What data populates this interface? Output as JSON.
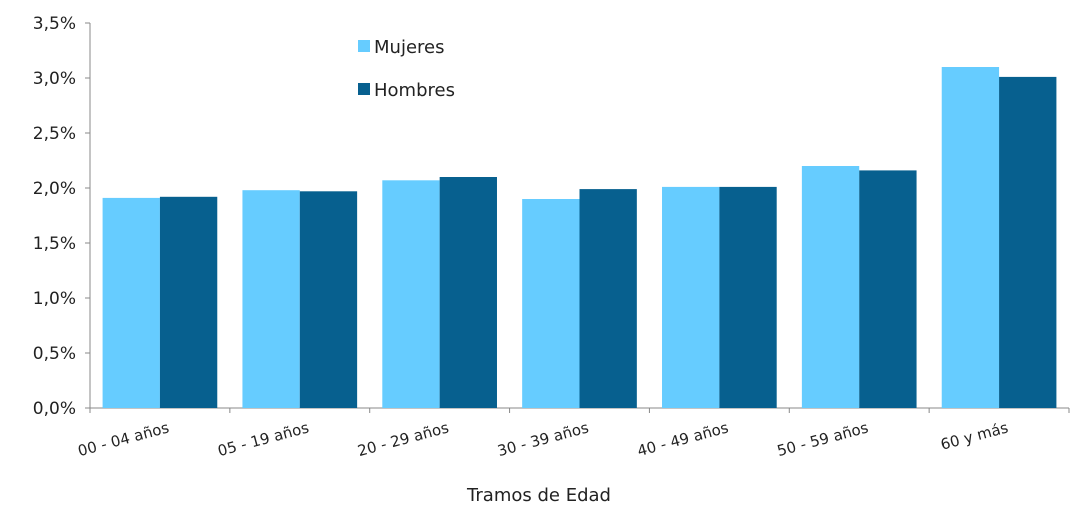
{
  "chart_data": {
    "type": "bar",
    "xlabel": "Tramos de Edad",
    "ylabel": "",
    "ylim": [
      0,
      0.035
    ],
    "yticks": [
      "0,0%",
      "0,5%",
      "1,0%",
      "1,5%",
      "2,0%",
      "2,5%",
      "3,0%",
      "3,5%"
    ],
    "categories": [
      "00 - 04 años",
      "05 - 19 años",
      "20 - 29 años",
      "30 - 39 años",
      "40 - 49 años",
      "50 - 59 años",
      "60 y más"
    ],
    "series": [
      {
        "name": "Mujeres",
        "color": "#66ccff",
        "values": [
          0.0191,
          0.0198,
          0.0207,
          0.019,
          0.0201,
          0.022,
          0.031
        ]
      },
      {
        "name": "Hombres",
        "color": "#07608f",
        "values": [
          0.0192,
          0.0197,
          0.021,
          0.0199,
          0.0201,
          0.0216,
          0.0301
        ]
      }
    ],
    "grid": false,
    "legend_position": "top-center"
  }
}
